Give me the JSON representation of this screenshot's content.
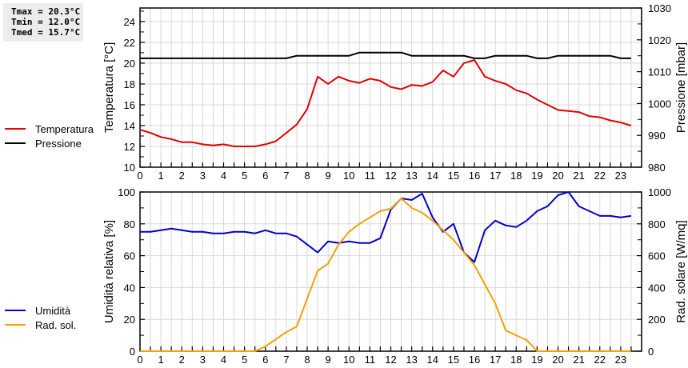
{
  "stats": {
    "tmax": "Tmax = 20.3°C",
    "tmin": "Tmin = 12.0°C",
    "tmed": "Tmed = 15.7°C"
  },
  "legend_top": [
    {
      "label": "Temperatura",
      "color": "#e00000"
    },
    {
      "label": "Pressione",
      "color": "#000000"
    }
  ],
  "legend_bottom": [
    {
      "label": "Umidità",
      "color": "#0000cc"
    },
    {
      "label": "Rad. sol.",
      "color": "#f5a000"
    }
  ],
  "chart_data": [
    {
      "type": "line",
      "title": "",
      "xlabel": "",
      "ylabel": "Temperatura [°C]",
      "y2label": "Pressione [mbar]",
      "xlim": [
        0,
        24
      ],
      "ylim": [
        10,
        25.3
      ],
      "y2lim": [
        980,
        1030
      ],
      "xticks": [
        0,
        1,
        2,
        3,
        4,
        5,
        6,
        7,
        8,
        9,
        10,
        11,
        12,
        13,
        14,
        15,
        16,
        17,
        18,
        19,
        20,
        21,
        22,
        23
      ],
      "yticks": [
        10,
        12,
        14,
        16,
        18,
        20,
        22,
        24
      ],
      "y2ticks": [
        980,
        990,
        1000,
        1010,
        1020,
        1030
      ],
      "grid": true,
      "legend_position": "left",
      "x": [
        0,
        0.5,
        1,
        1.5,
        2,
        2.5,
        3,
        3.5,
        4,
        4.5,
        5,
        5.5,
        6,
        6.5,
        7,
        7.5,
        8,
        8.5,
        9,
        9.5,
        10,
        10.5,
        11,
        11.5,
        12,
        12.5,
        13,
        13.5,
        14,
        14.5,
        15,
        15.5,
        16,
        16.5,
        17,
        17.5,
        18,
        18.5,
        19,
        19.5,
        20,
        20.5,
        21,
        21.5,
        22,
        22.5,
        23,
        23.5
      ],
      "series": [
        {
          "name": "Temperatura",
          "axis": "left",
          "color": "#e00000",
          "values": [
            13.6,
            13.3,
            12.9,
            12.7,
            12.4,
            12.4,
            12.2,
            12.1,
            12.2,
            12.0,
            12.0,
            12.0,
            12.2,
            12.5,
            13.3,
            14.1,
            15.6,
            18.7,
            18.0,
            18.7,
            18.3,
            18.1,
            18.5,
            18.3,
            17.7,
            17.5,
            17.9,
            17.8,
            18.2,
            19.3,
            18.7,
            20.0,
            20.3,
            18.7,
            18.3,
            18.0,
            17.4,
            17.1,
            16.5,
            16.0,
            15.5,
            15.4,
            15.3,
            14.9,
            14.8,
            14.5,
            14.3,
            14.0
          ]
        },
        {
          "name": "Pressione",
          "axis": "right",
          "color": "#000000",
          "values": [
            1014.2,
            1014.2,
            1014.2,
            1014.2,
            1014.2,
            1014.2,
            1014.2,
            1014.2,
            1014.2,
            1014.2,
            1014.2,
            1014.2,
            1014.2,
            1014.2,
            1014.2,
            1015,
            1015,
            1015,
            1015,
            1015,
            1015,
            1016,
            1016,
            1016,
            1016,
            1016,
            1015,
            1015,
            1015,
            1015,
            1015,
            1015,
            1014.2,
            1014.2,
            1015,
            1015,
            1015,
            1015,
            1014.2,
            1014.2,
            1015,
            1015,
            1015,
            1015,
            1015,
            1015,
            1014.2,
            1014.2
          ]
        }
      ]
    },
    {
      "type": "line",
      "title": "",
      "xlabel": "",
      "ylabel": "Umidità relativa [%]",
      "y2label": "Rad. solare [W/mq]",
      "xlim": [
        0,
        24
      ],
      "ylim": [
        0,
        100
      ],
      "y2lim": [
        0,
        1000
      ],
      "xticks": [
        0,
        1,
        2,
        3,
        4,
        5,
        6,
        7,
        8,
        9,
        10,
        11,
        12,
        13,
        14,
        15,
        16,
        17,
        18,
        19,
        20,
        21,
        22,
        23
      ],
      "yticks": [
        0,
        20,
        40,
        60,
        80,
        100
      ],
      "y2ticks": [
        0,
        200,
        400,
        600,
        800,
        1000
      ],
      "grid": true,
      "legend_position": "left",
      "x": [
        0,
        0.5,
        1,
        1.5,
        2,
        2.5,
        3,
        3.5,
        4,
        4.5,
        5,
        5.5,
        6,
        6.5,
        7,
        7.5,
        8,
        8.5,
        9,
        9.5,
        10,
        10.5,
        11,
        11.5,
        12,
        12.5,
        13,
        13.5,
        14,
        14.5,
        15,
        15.5,
        16,
        16.5,
        17,
        17.5,
        18,
        18.5,
        19,
        19.5,
        20,
        20.5,
        21,
        21.5,
        22,
        22.5,
        23,
        23.5
      ],
      "series": [
        {
          "name": "Umidità",
          "axis": "left",
          "color": "#0000cc",
          "values": [
            75,
            75,
            76,
            77,
            76,
            75,
            75,
            74,
            74,
            75,
            75,
            74,
            76,
            74,
            74,
            72,
            67,
            62,
            69,
            68,
            69,
            68,
            68,
            71,
            89,
            96,
            95,
            99,
            84,
            75,
            80,
            62,
            56,
            76,
            82,
            79,
            78,
            82,
            88,
            91,
            98,
            100,
            91,
            88,
            85,
            85,
            84,
            85
          ]
        },
        {
          "name": "Rad. sol.",
          "axis": "right",
          "color": "#f5a000",
          "values": [
            0,
            0,
            0,
            0,
            0,
            0,
            0,
            0,
            0,
            0,
            0,
            0,
            30,
            75,
            120,
            155,
            330,
            505,
            550,
            670,
            750,
            800,
            840,
            880,
            895,
            960,
            900,
            870,
            820,
            760,
            700,
            620,
            540,
            420,
            300,
            130,
            100,
            70,
            0,
            0,
            0,
            0,
            0,
            0,
            0,
            0,
            0,
            0
          ]
        }
      ]
    }
  ]
}
